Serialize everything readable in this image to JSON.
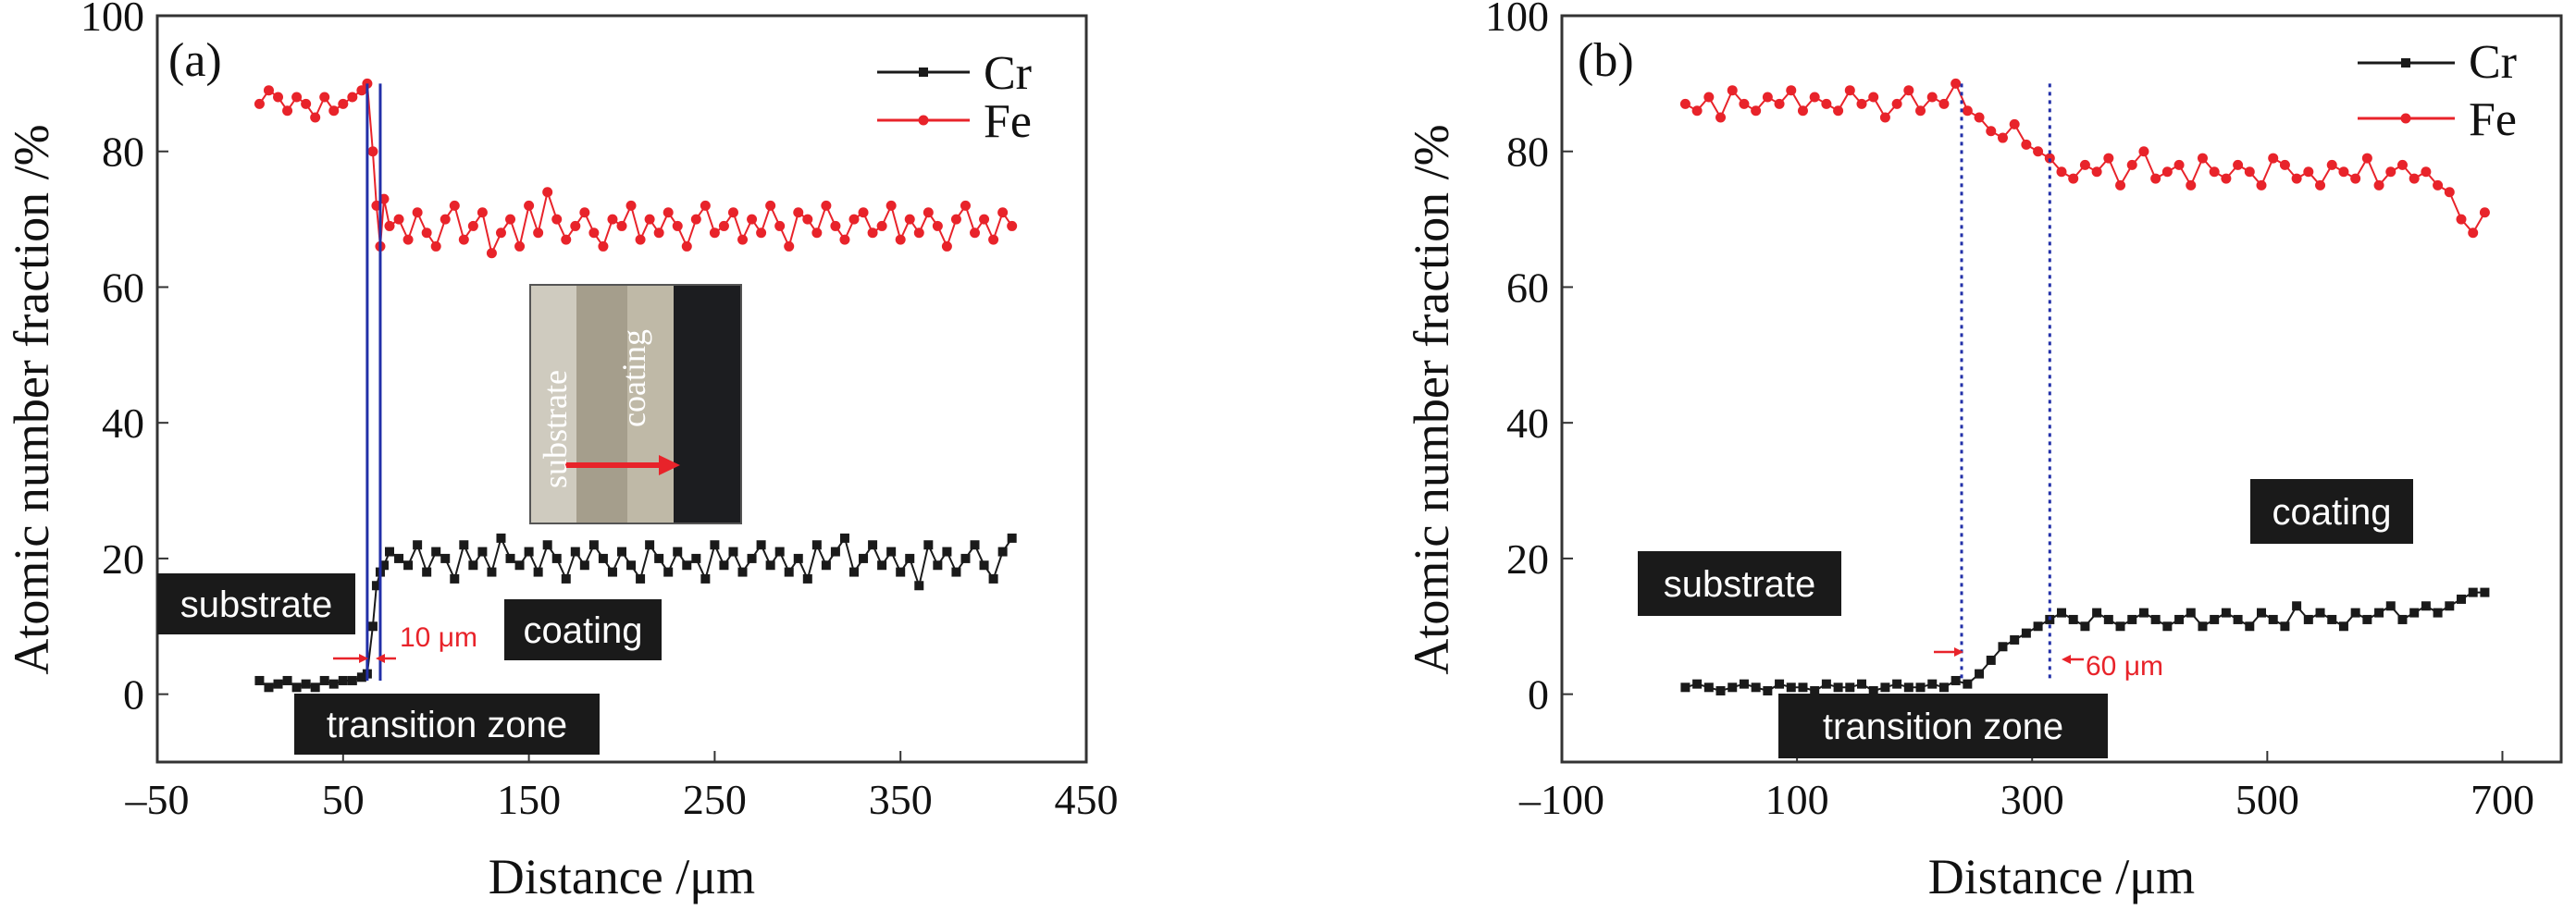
{
  "chart_data": [
    {
      "panel": "(a)",
      "type": "line",
      "xlabel": "Distance /μm",
      "ylabel": "Atomic number fraction /%",
      "xlim": [
        -50,
        450
      ],
      "ylim": [
        -10,
        100
      ],
      "xticks": [
        -50,
        50,
        150,
        250,
        350,
        450
      ],
      "yticks": [
        0,
        20,
        40,
        60,
        80,
        100
      ],
      "xtick_labels": [
        "–50",
        "50",
        "150",
        "250",
        "350",
        "450"
      ],
      "ytick_labels": [
        "0",
        "20",
        "40",
        "60",
        "80",
        "100"
      ],
      "legend": {
        "position": "top-right"
      },
      "series": [
        {
          "name": "Cr",
          "color": "#1a1a1a",
          "marker": "square",
          "x": [
            5,
            10,
            15,
            20,
            25,
            30,
            35,
            40,
            45,
            50,
            55,
            60,
            63,
            66,
            68,
            70,
            72,
            75,
            80,
            85,
            90,
            95,
            100,
            105,
            110,
            115,
            120,
            125,
            130,
            135,
            140,
            145,
            150,
            155,
            160,
            165,
            170,
            175,
            180,
            185,
            190,
            195,
            200,
            205,
            210,
            215,
            220,
            225,
            230,
            235,
            240,
            245,
            250,
            255,
            260,
            265,
            270,
            275,
            280,
            285,
            290,
            295,
            300,
            305,
            310,
            315,
            320,
            325,
            330,
            335,
            340,
            345,
            350,
            355,
            360,
            365,
            370,
            375,
            380,
            385,
            390,
            395,
            400,
            405,
            410
          ],
          "y": [
            2,
            1,
            1.5,
            2,
            1,
            1.5,
            1,
            2,
            1.5,
            2,
            2,
            2.5,
            3,
            10,
            16,
            18,
            19,
            21,
            20,
            19,
            22,
            18,
            21,
            20,
            17,
            22,
            19,
            21,
            18,
            23,
            20,
            19,
            21,
            18,
            22,
            20,
            17,
            21,
            19,
            22,
            20,
            18,
            21,
            19,
            17,
            22,
            20,
            18,
            21,
            19,
            20,
            17,
            22,
            19,
            21,
            18,
            20,
            22,
            19,
            21,
            18,
            20,
            17,
            22,
            19,
            21,
            23,
            18,
            20,
            22,
            19,
            21,
            18,
            20,
            16,
            22,
            19,
            21,
            18,
            20,
            22,
            19,
            17,
            21,
            23
          ]
        },
        {
          "name": "Fe",
          "color": "#e8232a",
          "marker": "circle",
          "x": [
            5,
            10,
            15,
            20,
            25,
            30,
            35,
            40,
            45,
            50,
            55,
            60,
            63,
            66,
            68,
            70,
            72,
            75,
            80,
            85,
            90,
            95,
            100,
            105,
            110,
            115,
            120,
            125,
            130,
            135,
            140,
            145,
            150,
            155,
            160,
            165,
            170,
            175,
            180,
            185,
            190,
            195,
            200,
            205,
            210,
            215,
            220,
            225,
            230,
            235,
            240,
            245,
            250,
            255,
            260,
            265,
            270,
            275,
            280,
            285,
            290,
            295,
            300,
            305,
            310,
            315,
            320,
            325,
            330,
            335,
            340,
            345,
            350,
            355,
            360,
            365,
            370,
            375,
            380,
            385,
            390,
            395,
            400,
            405,
            410
          ],
          "y": [
            87,
            89,
            88,
            86,
            88,
            87,
            85,
            88,
            86,
            87,
            88,
            89,
            90,
            80,
            72,
            66,
            73,
            69,
            70,
            67,
            71,
            68,
            66,
            70,
            72,
            67,
            69,
            71,
            65,
            68,
            70,
            66,
            72,
            68,
            74,
            70,
            67,
            69,
            71,
            68,
            66,
            70,
            69,
            72,
            67,
            70,
            68,
            71,
            69,
            66,
            70,
            72,
            68,
            69,
            71,
            67,
            70,
            68,
            72,
            69,
            66,
            71,
            70,
            68,
            72,
            69,
            67,
            70,
            71,
            68,
            69,
            72,
            67,
            70,
            68,
            71,
            69,
            66,
            70,
            72,
            68,
            70,
            67,
            71,
            69
          ]
        }
      ],
      "annotations": {
        "transition_lines_x": [
          63,
          70
        ],
        "dimension_text": "10 μm",
        "region_labels": [
          "substrate",
          "coating",
          "transition zone"
        ],
        "inset_labels": [
          "substrate",
          "coating"
        ]
      }
    },
    {
      "panel": "(b)",
      "type": "line",
      "xlabel": "Distance /μm",
      "ylabel": "Atomic number fraction /%",
      "xlim": [
        -100,
        750
      ],
      "ylim": [
        -10,
        100
      ],
      "xticks": [
        -100,
        100,
        300,
        500,
        700
      ],
      "yticks": [
        0,
        20,
        40,
        60,
        80,
        100
      ],
      "xtick_labels": [
        "–100",
        "100",
        "300",
        "500",
        "700"
      ],
      "ytick_labels": [
        "0",
        "20",
        "40",
        "60",
        "80",
        "100"
      ],
      "legend": {
        "position": "top-right"
      },
      "series": [
        {
          "name": "Cr",
          "color": "#1a1a1a",
          "marker": "square",
          "x": [
            5,
            15,
            25,
            35,
            45,
            55,
            65,
            75,
            85,
            95,
            105,
            115,
            125,
            135,
            145,
            155,
            165,
            175,
            185,
            195,
            205,
            215,
            225,
            235,
            245,
            255,
            265,
            275,
            285,
            295,
            305,
            315,
            325,
            335,
            345,
            355,
            365,
            375,
            385,
            395,
            405,
            415,
            425,
            435,
            445,
            455,
            465,
            475,
            485,
            495,
            505,
            515,
            525,
            535,
            545,
            555,
            565,
            575,
            585,
            595,
            605,
            615,
            625,
            635,
            645,
            655,
            665,
            675,
            685
          ],
          "y": [
            1,
            1.5,
            1,
            0.5,
            1,
            1.5,
            1,
            0.5,
            1.5,
            1,
            1,
            0.5,
            1.5,
            1,
            1,
            1.5,
            0.5,
            1,
            1.5,
            1,
            1,
            1.5,
            1,
            2,
            1.5,
            3,
            5,
            7,
            8,
            9,
            10,
            11,
            12,
            11,
            10,
            12,
            11,
            10,
            11,
            12,
            11,
            10,
            11,
            12,
            10,
            11,
            12,
            11,
            10,
            12,
            11,
            10,
            13,
            11,
            12,
            11,
            10,
            12,
            11,
            12,
            13,
            11,
            12,
            13,
            12,
            13,
            14,
            15,
            15
          ]
        },
        {
          "name": "Fe",
          "color": "#e8232a",
          "marker": "circle",
          "x": [
            5,
            15,
            25,
            35,
            45,
            55,
            65,
            75,
            85,
            95,
            105,
            115,
            125,
            135,
            145,
            155,
            165,
            175,
            185,
            195,
            205,
            215,
            225,
            235,
            245,
            255,
            265,
            275,
            285,
            295,
            305,
            315,
            325,
            335,
            345,
            355,
            365,
            375,
            385,
            395,
            405,
            415,
            425,
            435,
            445,
            455,
            465,
            475,
            485,
            495,
            505,
            515,
            525,
            535,
            545,
            555,
            565,
            575,
            585,
            595,
            605,
            615,
            625,
            635,
            645,
            655,
            665,
            675,
            685
          ],
          "y": [
            87,
            86,
            88,
            85,
            89,
            87,
            86,
            88,
            87,
            89,
            86,
            88,
            87,
            86,
            89,
            87,
            88,
            85,
            87,
            89,
            86,
            88,
            87,
            90,
            86,
            85,
            83,
            82,
            84,
            81,
            80,
            79,
            77,
            76,
            78,
            77,
            79,
            75,
            78,
            80,
            76,
            77,
            78,
            75,
            79,
            77,
            76,
            78,
            77,
            75,
            79,
            78,
            76,
            77,
            75,
            78,
            77,
            76,
            79,
            75,
            77,
            78,
            76,
            77,
            75,
            74,
            70,
            68,
            71
          ]
        }
      ],
      "annotations": {
        "transition_lines_x": [
          240,
          315
        ],
        "dimension_text": "60 μm",
        "region_labels": [
          "substrate",
          "coating",
          "transition zone"
        ]
      }
    }
  ]
}
